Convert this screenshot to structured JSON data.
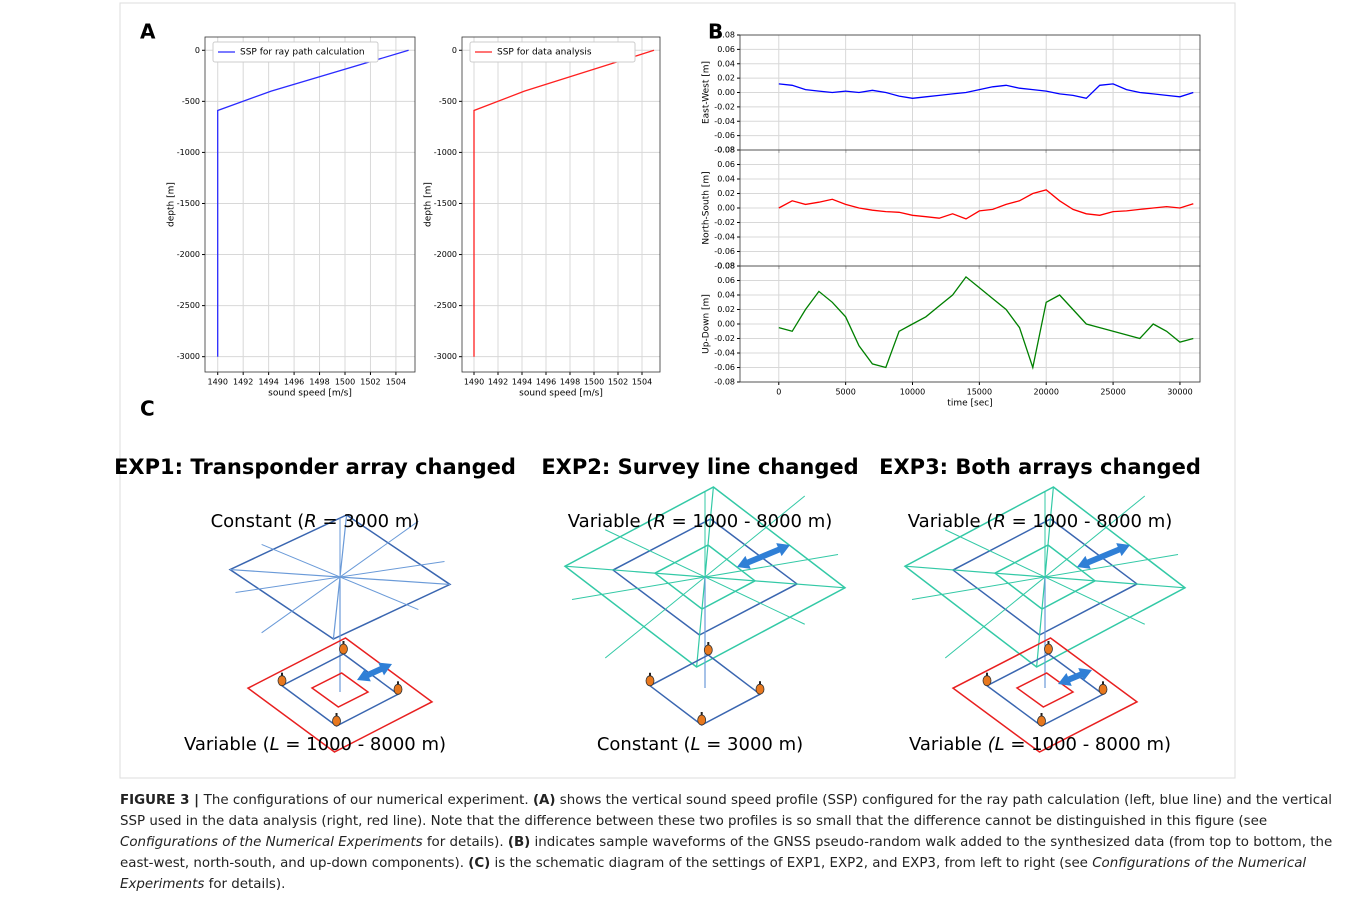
{
  "panel_labels": [
    "A",
    "B",
    "C"
  ],
  "chart_data": [
    {
      "type": "line",
      "x": [
        1505,
        1494.2,
        1490,
        1490
      ],
      "series": [
        {
          "name": "SSP for ray path calculation",
          "color": "#2a2aff",
          "values": [
            0,
            -400,
            -590,
            -3000
          ]
        }
      ],
      "xlabel": "sound speed [m/s]",
      "ylabel": "depth [m]",
      "xlim": [
        1489,
        1505.5
      ],
      "ylim": [
        -3150,
        130
      ],
      "xticks": [
        1490,
        1492,
        1494,
        1496,
        1498,
        1500,
        1502,
        1504
      ],
      "yticks": [
        0,
        -500,
        -1000,
        -1500,
        -2000,
        -2500,
        -3000
      ],
      "grid": true,
      "legend": "upper left",
      "show_xtick_labels": true
    },
    {
      "type": "line",
      "x": [
        1505,
        1494.2,
        1490,
        1490
      ],
      "series": [
        {
          "name": "SSP for data analysis",
          "color": "#ff2020",
          "values": [
            0,
            -400,
            -590,
            -3000
          ]
        }
      ],
      "xlabel": "sound speed [m/s]",
      "ylabel": "depth [m]",
      "xlim": [
        1489,
        1505.5
      ],
      "ylim": [
        -3150,
        130
      ],
      "xticks": [
        1490,
        1492,
        1494,
        1496,
        1498,
        1500,
        1502,
        1504
      ],
      "yticks": [
        0,
        -500,
        -1000,
        -1500,
        -2000,
        -2500,
        -3000
      ],
      "grid": true,
      "legend": "upper left",
      "show_xtick_labels": true
    },
    {
      "type": "line",
      "ylabel": "East-West [m]",
      "color": "#0000ff",
      "x": [
        0,
        1000,
        2000,
        3000,
        4000,
        5000,
        6000,
        7000,
        8000,
        9000,
        10000,
        11000,
        12000,
        13000,
        14000,
        15000,
        16000,
        17000,
        18000,
        19000,
        20000,
        21000,
        22000,
        23000,
        24000,
        25000,
        26000,
        27000,
        28000,
        29000,
        30000,
        31000
      ],
      "values": [
        0.012,
        0.01,
        0.004,
        0.002,
        0.0,
        0.002,
        0.0,
        0.003,
        0.0,
        -0.005,
        -0.008,
        -0.006,
        -0.004,
        -0.002,
        0.0,
        0.004,
        0.008,
        0.01,
        0.006,
        0.004,
        0.002,
        -0.002,
        -0.004,
        -0.008,
        0.01,
        0.012,
        0.004,
        0.0,
        -0.002,
        -0.004,
        -0.006,
        0.0
      ],
      "xlim": [
        -2900,
        31500
      ],
      "ylim": [
        -0.08,
        0.08
      ],
      "xticks": [
        0,
        5000,
        10000,
        15000,
        20000,
        25000,
        30000
      ],
      "yticks": [
        -0.08,
        -0.06,
        -0.04,
        -0.02,
        {
          "value": 0,
          "label": "0.00"
        },
        0.02,
        0.04,
        0.06,
        0.08
      ],
      "grid": true,
      "show_xtick_labels": false
    },
    {
      "type": "line",
      "ylabel": "North-South [m]",
      "color": "#ff0000",
      "x": [
        0,
        1000,
        2000,
        3000,
        4000,
        5000,
        6000,
        7000,
        8000,
        9000,
        10000,
        11000,
        12000,
        13000,
        14000,
        15000,
        16000,
        17000,
        18000,
        19000,
        20000,
        21000,
        22000,
        23000,
        24000,
        25000,
        26000,
        27000,
        28000,
        29000,
        30000,
        31000
      ],
      "values": [
        0.0,
        0.01,
        0.005,
        0.008,
        0.012,
        0.005,
        0.0,
        -0.003,
        -0.005,
        -0.006,
        -0.01,
        -0.012,
        -0.014,
        -0.008,
        -0.015,
        -0.004,
        -0.002,
        0.005,
        0.01,
        0.02,
        0.025,
        0.01,
        -0.002,
        -0.008,
        -0.01,
        -0.005,
        -0.004,
        -0.002,
        0.0,
        0.002,
        0.0,
        0.006
      ],
      "xlim": [
        -2900,
        31500
      ],
      "ylim": [
        -0.08,
        0.08
      ],
      "xticks": [
        0,
        5000,
        10000,
        15000,
        20000,
        25000,
        30000
      ],
      "yticks": [
        -0.08,
        -0.06,
        -0.04,
        -0.02,
        {
          "value": 0,
          "label": "0.00"
        },
        0.02,
        0.04,
        0.06,
        0.08
      ],
      "grid": true,
      "show_xtick_labels": false
    },
    {
      "type": "line",
      "ylabel": "Up-Down [m]",
      "xlabel": "time [sec]",
      "color": "#008000",
      "x": [
        0,
        1000,
        2000,
        3000,
        4000,
        5000,
        6000,
        7000,
        8000,
        9000,
        10000,
        11000,
        12000,
        13000,
        14000,
        15000,
        16000,
        17000,
        18000,
        19000,
        20000,
        21000,
        22000,
        23000,
        24000,
        25000,
        26000,
        27000,
        28000,
        29000,
        30000,
        31000
      ],
      "values": [
        -0.005,
        -0.01,
        0.02,
        0.045,
        0.03,
        0.01,
        -0.03,
        -0.055,
        -0.06,
        -0.01,
        0.0,
        0.01,
        0.025,
        0.04,
        0.065,
        0.05,
        0.035,
        0.02,
        -0.005,
        -0.06,
        0.03,
        0.04,
        0.02,
        0.0,
        -0.005,
        -0.01,
        -0.015,
        -0.02,
        0.0,
        -0.01,
        -0.025,
        -0.02
      ],
      "xlim": [
        -2900,
        31500
      ],
      "ylim": [
        -0.08,
        0.08
      ],
      "xticks": [
        0,
        5000,
        10000,
        15000,
        20000,
        25000,
        30000
      ],
      "yticks": [
        -0.08,
        -0.06,
        -0.04,
        -0.02,
        {
          "value": 0,
          "label": "0.00"
        },
        0.02,
        0.04,
        0.06,
        0.08
      ],
      "grid": true,
      "show_xtick_labels": true
    }
  ],
  "experiments": [
    {
      "title": "EXP1: Transponder array changed",
      "top_label": {
        "prefix": "Constant (",
        "var": "R",
        "suffix": " = 3000 m)"
      },
      "bottom_label": {
        "prefix": "Variable (",
        "var": "L",
        "suffix": " = 1000 - 8000 m)"
      }
    },
    {
      "title": "EXP2: Survey line changed",
      "top_label": {
        "prefix": "Variable (",
        "var": "R",
        "suffix": " = 1000 - 8000 m)"
      },
      "bottom_label": {
        "prefix": "Constant (",
        "var": "L",
        "suffix": " = 3000 m)"
      }
    },
    {
      "title": "EXP3: Both arrays changed",
      "top_label": {
        "prefix": "Variable (",
        "var": "R",
        "suffix": " = 1000 - 8000 m)"
      },
      "bottom_label": {
        "prefix": "Variable ",
        "var": "(L",
        "suffix": " = 1000 - 8000 m)"
      }
    }
  ],
  "caption": [
    {
      "text": "FIGURE 3 | ",
      "style": "bold"
    },
    {
      "text": "The configurations of our numerical experiment. ",
      "style": "normal"
    },
    {
      "text": "(A)",
      "style": "bold"
    },
    {
      "text": " shows the vertical sound speed profile (SSP) configured for the ray path calculation (left, blue line) and the vertical SSP used in the data analysis (right, red line). Note that the difference between these two profiles is so small that the difference cannot be distinguished in this figure (see ",
      "style": "normal"
    },
    {
      "text": "Configurations of the Numerical Experiments",
      "style": "italic"
    },
    {
      "text": " for details). ",
      "style": "normal"
    },
    {
      "text": "(B)",
      "style": "bold"
    },
    {
      "text": " indicates sample waveforms of the GNSS pseudo-random walk added to the synthesized data (from top to bottom, the east-west, north-south, and up-down components). ",
      "style": "normal"
    },
    {
      "text": "(C)",
      "style": "bold"
    },
    {
      "text": " is the schematic diagram of the settings of EXP1, EXP2, and EXP3, from left to right (see ",
      "style": "normal"
    },
    {
      "text": "Configurations of the Numerical Experiments",
      "style": "italic"
    },
    {
      "text": " for details).",
      "style": "normal"
    }
  ]
}
